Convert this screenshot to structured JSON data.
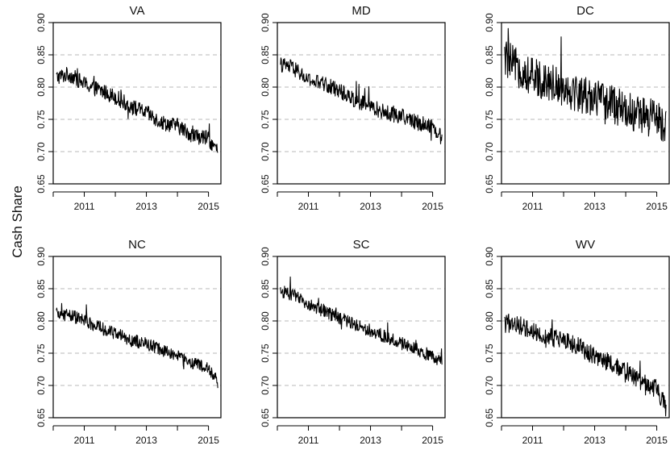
{
  "chart_data": {
    "type": "line",
    "ylabel": "Cash Share",
    "ylim": [
      0.65,
      0.9
    ],
    "xlim": [
      2010.0,
      2015.4
    ],
    "yticks": [
      "0.65",
      "0.70",
      "0.75",
      "0.80",
      "0.85",
      "0.90"
    ],
    "xticks": [
      "2011",
      "2013",
      "2015"
    ],
    "grid": "horizontal dashed",
    "line_color": "#000000",
    "panels": [
      {
        "title": "VA",
        "x": [
          2010.1,
          2010.5,
          2011.0,
          2011.5,
          2012.0,
          2012.5,
          2013.0,
          2013.5,
          2014.0,
          2014.5,
          2015.0,
          2015.3
        ],
        "y": [
          0.815,
          0.82,
          0.805,
          0.795,
          0.785,
          0.77,
          0.76,
          0.745,
          0.74,
          0.725,
          0.72,
          0.7
        ],
        "noise": 0.012
      },
      {
        "title": "MD",
        "x": [
          2010.1,
          2010.5,
          2011.0,
          2011.5,
          2012.0,
          2012.5,
          2013.0,
          2013.5,
          2014.0,
          2014.5,
          2015.0,
          2015.3
        ],
        "y": [
          0.835,
          0.83,
          0.81,
          0.805,
          0.795,
          0.78,
          0.77,
          0.76,
          0.755,
          0.745,
          0.74,
          0.72
        ],
        "noise": 0.012
      },
      {
        "title": "DC",
        "x": [
          2010.1,
          2010.5,
          2011.0,
          2011.5,
          2012.0,
          2012.5,
          2013.0,
          2013.5,
          2014.0,
          2014.5,
          2015.0,
          2015.3
        ],
        "y": [
          0.845,
          0.83,
          0.815,
          0.81,
          0.8,
          0.79,
          0.785,
          0.775,
          0.765,
          0.755,
          0.75,
          0.74
        ],
        "noise": 0.03
      },
      {
        "title": "NC",
        "x": [
          2010.1,
          2010.5,
          2011.0,
          2011.5,
          2012.0,
          2012.5,
          2013.0,
          2013.5,
          2014.0,
          2014.5,
          2015.0,
          2015.3
        ],
        "y": [
          0.81,
          0.81,
          0.8,
          0.79,
          0.78,
          0.77,
          0.765,
          0.755,
          0.745,
          0.735,
          0.725,
          0.705
        ],
        "noise": 0.01
      },
      {
        "title": "SC",
        "x": [
          2010.1,
          2010.5,
          2011.0,
          2011.5,
          2012.0,
          2012.5,
          2013.0,
          2013.5,
          2014.0,
          2014.5,
          2015.0,
          2015.3
        ],
        "y": [
          0.845,
          0.84,
          0.825,
          0.815,
          0.805,
          0.795,
          0.785,
          0.775,
          0.765,
          0.755,
          0.745,
          0.735
        ],
        "noise": 0.01
      },
      {
        "title": "WV",
        "x": [
          2010.1,
          2010.5,
          2011.0,
          2011.5,
          2012.0,
          2012.5,
          2013.0,
          2013.5,
          2014.0,
          2014.5,
          2015.0,
          2015.3
        ],
        "y": [
          0.795,
          0.795,
          0.785,
          0.775,
          0.77,
          0.76,
          0.745,
          0.735,
          0.72,
          0.705,
          0.695,
          0.665
        ],
        "noise": 0.014
      }
    ]
  }
}
